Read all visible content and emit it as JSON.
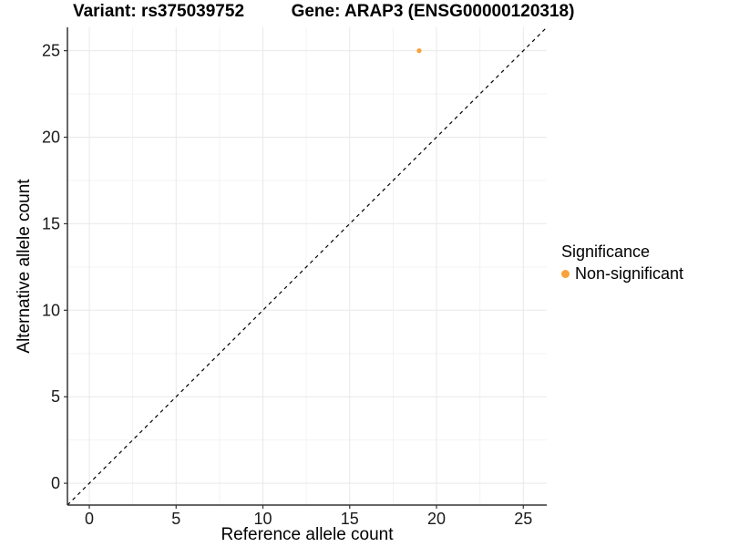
{
  "titles": {
    "left": "Variant: rs375039752",
    "right": "Gene: ARAP3 (ENSG00000120318)"
  },
  "chart_data": {
    "type": "scatter",
    "title_left": "Variant: rs375039752",
    "title_right": "Gene: ARAP3 (ENSG00000120318)",
    "xlabel": "Reference allele count",
    "ylabel": "Alternative allele count",
    "xlim": [
      -1.26,
      26.35
    ],
    "ylim": [
      -1.26,
      26.35
    ],
    "x_ticks": [
      0,
      5,
      10,
      15,
      20,
      25
    ],
    "y_ticks": [
      0,
      5,
      10,
      15,
      20,
      25
    ],
    "x_minor_ticks": [
      2.5,
      7.5,
      12.5,
      17.5,
      22.5
    ],
    "y_minor_ticks": [
      2.5,
      7.5,
      12.5,
      17.5,
      22.5
    ],
    "grid": "major+minor",
    "points": [
      {
        "x": 19,
        "y": 25,
        "series": "Non-significant"
      }
    ],
    "reference_line": {
      "type": "identity",
      "style": "dashed",
      "color": "#000000"
    },
    "legend": {
      "title": "Significance",
      "position": "right",
      "items": [
        {
          "label": "Non-significant",
          "color": "#F9A13A"
        }
      ]
    },
    "colors": {
      "point": "#F9A13A",
      "grid_major": "#E8E8E8",
      "grid_minor": "#F3F3F3",
      "axis_line": "#333333",
      "tick_label": "#1a1a1a"
    }
  }
}
